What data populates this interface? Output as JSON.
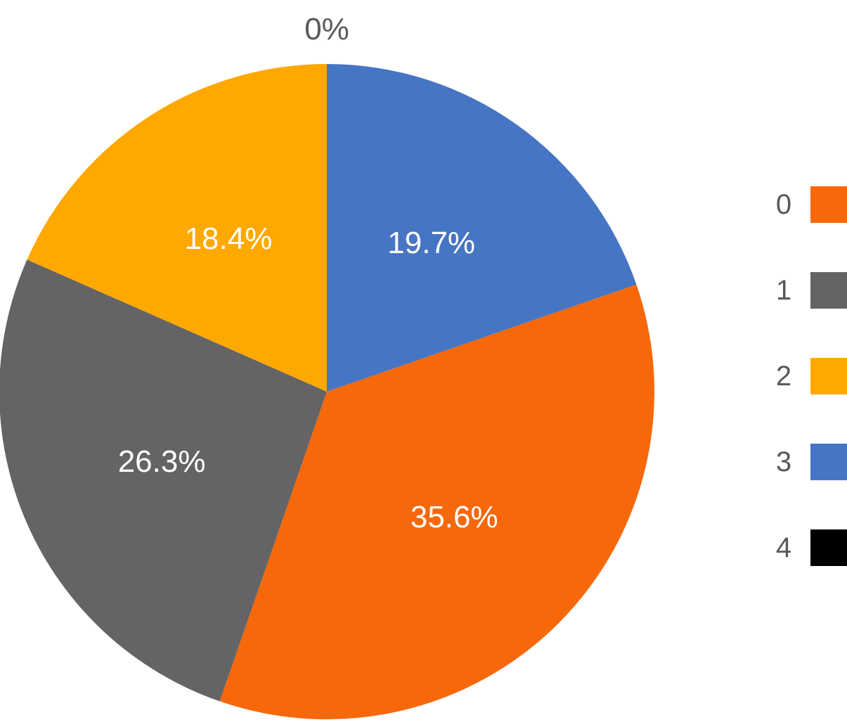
{
  "chart_data": {
    "type": "pie",
    "categories": [
      "0",
      "1",
      "2",
      "3",
      "4"
    ],
    "values": [
      35.6,
      26.3,
      18.4,
      19.7,
      0
    ],
    "labels": [
      "35.6%",
      "26.3%",
      "18.4%",
      "19.7%",
      "0%"
    ],
    "colors": [
      "#F6680A",
      "#646466",
      "#FFA800",
      "#4675C4",
      "#000000"
    ],
    "start_angle_deg": 0,
    "direction": "clockwise",
    "slice_order": [
      "3",
      "0",
      "1",
      "2",
      "4"
    ],
    "legend_position": "right"
  }
}
